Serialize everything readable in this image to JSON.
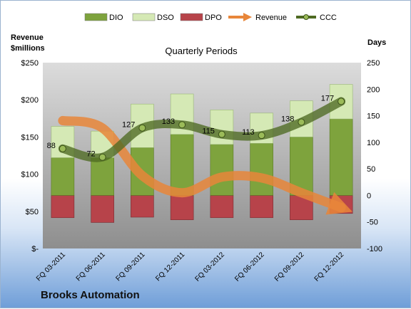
{
  "chart_data": {
    "type": "bar",
    "title": "Quarterly Periods",
    "company": "Brooks Automation",
    "legend": {
      "position": "top",
      "entries": [
        {
          "key": "dio",
          "label": "DIO",
          "kind": "bar",
          "color": "#7ea33d"
        },
        {
          "key": "dso",
          "label": "DSO",
          "kind": "bar",
          "color": "#d5e9b5"
        },
        {
          "key": "dpo",
          "label": "DPO",
          "kind": "bar",
          "color": "#b7434a"
        },
        {
          "key": "revenue",
          "label": "Revenue",
          "kind": "arrow",
          "color": "#e8863a"
        },
        {
          "key": "ccc",
          "label": "CCC",
          "kind": "line-marker",
          "color": "#4e6a22"
        }
      ]
    },
    "left_axis": {
      "label_line1": "Revenue",
      "label_line2": "$millions",
      "ylim": [
        0,
        250
      ],
      "ticks": [
        0,
        50,
        100,
        150,
        200,
        250
      ],
      "tick_labels": [
        "$-",
        "$50",
        "$100",
        "$150",
        "$200",
        "$250"
      ]
    },
    "right_axis": {
      "label": "Days",
      "ylim": [
        -100,
        250
      ],
      "ticks": [
        -100,
        -50,
        0,
        50,
        100,
        150,
        200,
        250
      ],
      "tick_labels": [
        "-100",
        "-50",
        "0",
        "50",
        "100",
        "150",
        "200",
        "250"
      ]
    },
    "categories": [
      "FQ 03-2011",
      "FQ 06-2011",
      "FQ 09-2011",
      "FQ 12-2011",
      "FQ 03-2012",
      "FQ 06-2012",
      "FQ 09-2012",
      "FQ 12-2012"
    ],
    "series": [
      {
        "name": "DIO",
        "axis": "right",
        "values": [
          71,
          71,
          90,
          115,
          96,
          98,
          110,
          144
        ]
      },
      {
        "name": "DSO",
        "axis": "right",
        "values": [
          59,
          50,
          82,
          76,
          65,
          57,
          68,
          65
        ]
      },
      {
        "name": "DPO",
        "axis": "right",
        "values": [
          -42,
          -51,
          -41,
          -46,
          -42,
          -42,
          -46,
          -34
        ]
      },
      {
        "name": "CCC",
        "axis": "right",
        "values": [
          88,
          72,
          127,
          133,
          115,
          113,
          138,
          177
        ],
        "labels": [
          "88",
          "72",
          "127",
          "133",
          "115",
          "113",
          "138",
          "177"
        ]
      },
      {
        "name": "Revenue",
        "axis": "left",
        "values": [
          172,
          162,
          98,
          75,
          96,
          95,
          75,
          55
        ],
        "style": "trend-arrow"
      }
    ],
    "grid": false
  }
}
